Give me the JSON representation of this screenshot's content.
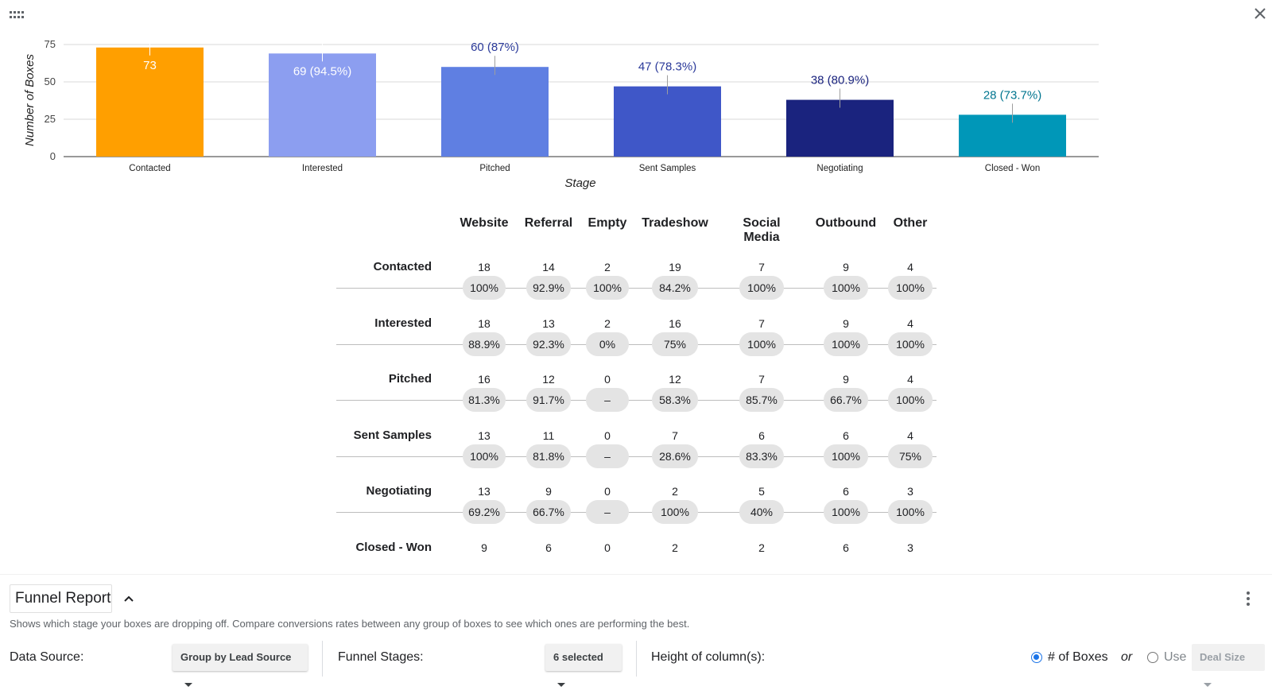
{
  "chart_data": {
    "type": "bar",
    "categories": [
      "Contacted",
      "Interested",
      "Pitched",
      "Sent Samples",
      "Negotiating",
      "Closed - Won"
    ],
    "values": [
      73,
      69,
      60,
      47,
      38,
      28
    ],
    "data_labels": [
      "73",
      "69 (94.5%)",
      "60 (87%)",
      "47 (78.3%)",
      "38 (80.9%)",
      "28 (73.7%)"
    ],
    "colors": [
      "#ff9f00",
      "#8c9ef0",
      "#5f7fe2",
      "#3f57c8",
      "#1a237e",
      "#0097b8"
    ],
    "label_colors": [
      "#ffffff",
      "#ffffff",
      "#2b3a9a",
      "#2b3a9a",
      "#1a237e",
      "#00758f"
    ],
    "title": "",
    "xlabel": "Stage",
    "ylabel": "Number of Boxes",
    "yticks": [
      "0",
      "25",
      "50",
      "75"
    ],
    "ylim": [
      0,
      75
    ]
  },
  "table": {
    "columns": [
      "Website",
      "Referral",
      "Empty",
      "Tradeshow",
      "Social Media",
      "Outbound",
      "Other"
    ],
    "rows": [
      {
        "stage": "Contacted",
        "values": [
          "18",
          "14",
          "2",
          "19",
          "7",
          "9",
          "4"
        ]
      },
      {
        "stage": "Interested",
        "values": [
          "18",
          "13",
          "2",
          "16",
          "7",
          "9",
          "4"
        ]
      },
      {
        "stage": "Pitched",
        "values": [
          "16",
          "12",
          "0",
          "12",
          "7",
          "9",
          "4"
        ]
      },
      {
        "stage": "Sent Samples",
        "values": [
          "13",
          "11",
          "0",
          "7",
          "6",
          "6",
          "4"
        ]
      },
      {
        "stage": "Negotiating",
        "values": [
          "13",
          "9",
          "0",
          "2",
          "5",
          "6",
          "3"
        ]
      },
      {
        "stage": "Closed - Won",
        "values": [
          "9",
          "6",
          "0",
          "2",
          "2",
          "6",
          "3"
        ]
      }
    ],
    "conversions": [
      [
        "100%",
        "92.9%",
        "100%",
        "84.2%",
        "100%",
        "100%",
        "100%"
      ],
      [
        "88.9%",
        "92.3%",
        "0%",
        "75%",
        "100%",
        "100%",
        "100%"
      ],
      [
        "81.3%",
        "91.7%",
        "–",
        "58.3%",
        "85.7%",
        "66.7%",
        "100%"
      ],
      [
        "100%",
        "81.8%",
        "–",
        "28.6%",
        "83.3%",
        "100%",
        "75%"
      ],
      [
        "69.2%",
        "66.7%",
        "–",
        "100%",
        "40%",
        "100%",
        "100%"
      ]
    ]
  },
  "footer": {
    "report_title": "Funnel Report",
    "description": "Shows which stage your boxes are dropping off. Compare conversions rates between any group of boxes to see which ones are performing the best.",
    "data_source_label": "Data Source:",
    "data_source_value": "Group by Lead Source",
    "funnel_stages_label": "Funnel Stages:",
    "funnel_stages_value": "6 selected",
    "height_label": "Height of column(s):",
    "option_boxes": "# of Boxes",
    "or_text": "or",
    "option_use": "Use",
    "deal_size": "Deal Size"
  }
}
